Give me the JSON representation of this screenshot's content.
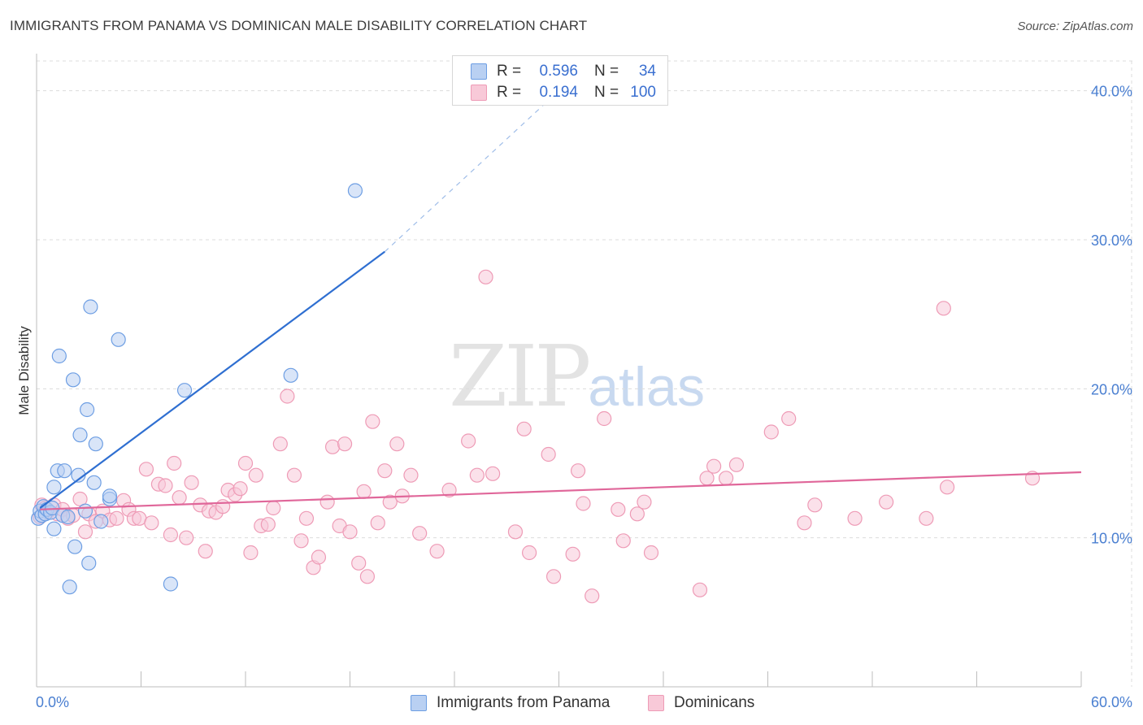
{
  "header": {
    "title": "IMMIGRANTS FROM PANAMA VS DOMINICAN MALE DISABILITY CORRELATION CHART",
    "source": "Source: ZipAtlas.com"
  },
  "watermark": {
    "zip": "ZIP",
    "atlas": "atlas"
  },
  "legend_top": {
    "rows": [
      {
        "r_label": "R =",
        "r_value": "0.596",
        "n_label": "N =",
        "n_value": "34",
        "color_fill": "#b9d0f2",
        "color_stroke": "#6d9ee3"
      },
      {
        "r_label": "R =",
        "r_value": "0.194",
        "n_label": "N =",
        "n_value": "100",
        "color_fill": "#f8c9d8",
        "color_stroke": "#ee9bb6"
      }
    ]
  },
  "legend_bottom": {
    "items": [
      {
        "label": "Immigrants from Panama",
        "color_fill": "#b9d0f2",
        "color_stroke": "#6d9ee3"
      },
      {
        "label": "Dominicans",
        "color_fill": "#f8c9d8",
        "color_stroke": "#ee9bb6"
      }
    ]
  },
  "chart_data": {
    "type": "scatter",
    "title": "IMMIGRANTS FROM PANAMA VS DOMINICAN MALE DISABILITY CORRELATION CHART",
    "xlabel": "",
    "ylabel": "Male Disability",
    "xlim": [
      0,
      60
    ],
    "ylim": [
      0,
      42
    ],
    "x_tick_labels": [
      "0.0%",
      "60.0%"
    ],
    "y_ticks": [
      10,
      20,
      30,
      40
    ],
    "y_tick_labels": [
      "10.0%",
      "20.0%",
      "30.0%",
      "40.0%"
    ],
    "grid": true,
    "legend_position": "top-center",
    "colors": {
      "panama": "#6d9ee3",
      "dominicans": "#ee9bb6",
      "panama_line": "#2f6fd1",
      "dominicans_line": "#e0679a"
    },
    "series": [
      {
        "name": "Immigrants from Panama",
        "r": 0.596,
        "n": 34,
        "trend": {
          "x": [
            0.2,
            20.0
          ],
          "y": [
            12.0,
            29.2
          ],
          "dashed_to": [
            30.0,
            40.0
          ]
        },
        "points": [
          [
            0.1,
            11.3
          ],
          [
            0.2,
            11.8
          ],
          [
            0.3,
            11.5
          ],
          [
            0.4,
            12.1
          ],
          [
            0.5,
            11.6
          ],
          [
            0.6,
            11.9
          ],
          [
            0.8,
            11.7
          ],
          [
            0.9,
            12.0
          ],
          [
            1.0,
            13.4
          ],
          [
            1.0,
            10.6
          ],
          [
            1.2,
            14.5
          ],
          [
            1.3,
            22.2
          ],
          [
            1.5,
            11.5
          ],
          [
            1.6,
            14.5
          ],
          [
            1.8,
            11.4
          ],
          [
            1.9,
            6.7
          ],
          [
            2.1,
            20.6
          ],
          [
            2.2,
            9.4
          ],
          [
            2.4,
            14.2
          ],
          [
            2.5,
            16.9
          ],
          [
            2.8,
            11.8
          ],
          [
            2.9,
            18.6
          ],
          [
            3.0,
            8.3
          ],
          [
            3.1,
            25.5
          ],
          [
            3.3,
            13.7
          ],
          [
            3.4,
            16.3
          ],
          [
            3.7,
            11.1
          ],
          [
            4.2,
            12.6
          ],
          [
            4.2,
            12.8
          ],
          [
            4.7,
            23.3
          ],
          [
            7.7,
            6.9
          ],
          [
            8.5,
            19.9
          ],
          [
            14.6,
            20.9
          ],
          [
            18.3,
            33.3
          ]
        ]
      },
      {
        "name": "Dominicans",
        "r": 0.194,
        "n": 100,
        "trend": {
          "x": [
            0.2,
            60.0
          ],
          "y": [
            11.9,
            14.4
          ]
        },
        "points": [
          [
            0.2,
            11.4
          ],
          [
            0.3,
            12.2
          ],
          [
            0.5,
            12.0
          ],
          [
            0.7,
            11.8
          ],
          [
            1.0,
            12.2
          ],
          [
            1.2,
            11.6
          ],
          [
            1.5,
            11.9
          ],
          [
            1.8,
            11.3
          ],
          [
            2.1,
            11.5
          ],
          [
            2.5,
            12.6
          ],
          [
            2.8,
            10.4
          ],
          [
            3.0,
            11.6
          ],
          [
            3.4,
            11.1
          ],
          [
            3.8,
            11.8
          ],
          [
            4.2,
            11.2
          ],
          [
            4.6,
            11.3
          ],
          [
            5.0,
            12.5
          ],
          [
            5.3,
            11.9
          ],
          [
            5.6,
            11.3
          ],
          [
            5.9,
            11.3
          ],
          [
            6.3,
            14.6
          ],
          [
            6.6,
            11.0
          ],
          [
            7.0,
            13.6
          ],
          [
            7.4,
            13.5
          ],
          [
            7.7,
            10.2
          ],
          [
            7.9,
            15.0
          ],
          [
            8.2,
            12.7
          ],
          [
            8.6,
            10.0
          ],
          [
            8.9,
            13.7
          ],
          [
            9.4,
            12.2
          ],
          [
            9.7,
            9.1
          ],
          [
            9.9,
            11.8
          ],
          [
            10.3,
            11.7
          ],
          [
            10.7,
            12.1
          ],
          [
            11.0,
            13.2
          ],
          [
            11.4,
            12.9
          ],
          [
            11.7,
            13.3
          ],
          [
            12.0,
            15.0
          ],
          [
            12.3,
            9.0
          ],
          [
            12.6,
            14.2
          ],
          [
            12.9,
            10.8
          ],
          [
            13.3,
            10.9
          ],
          [
            13.6,
            12.0
          ],
          [
            14.0,
            16.3
          ],
          [
            14.4,
            19.5
          ],
          [
            14.8,
            14.2
          ],
          [
            15.2,
            9.8
          ],
          [
            15.5,
            11.3
          ],
          [
            15.9,
            8.0
          ],
          [
            16.2,
            8.7
          ],
          [
            16.7,
            12.4
          ],
          [
            17.0,
            16.1
          ],
          [
            17.4,
            10.8
          ],
          [
            17.7,
            16.3
          ],
          [
            18.0,
            10.4
          ],
          [
            18.5,
            8.3
          ],
          [
            18.8,
            13.1
          ],
          [
            19.0,
            7.4
          ],
          [
            19.3,
            17.8
          ],
          [
            19.6,
            11.0
          ],
          [
            20.0,
            14.5
          ],
          [
            20.3,
            12.4
          ],
          [
            20.7,
            16.3
          ],
          [
            21.0,
            12.8
          ],
          [
            21.5,
            14.2
          ],
          [
            22.0,
            10.3
          ],
          [
            23.0,
            9.1
          ],
          [
            23.7,
            13.2
          ],
          [
            24.8,
            16.5
          ],
          [
            25.3,
            14.2
          ],
          [
            25.8,
            27.5
          ],
          [
            26.2,
            14.3
          ],
          [
            27.5,
            10.4
          ],
          [
            28.0,
            17.3
          ],
          [
            28.3,
            9.0
          ],
          [
            29.4,
            15.6
          ],
          [
            29.7,
            7.4
          ],
          [
            30.8,
            8.9
          ],
          [
            31.1,
            14.5
          ],
          [
            31.4,
            12.3
          ],
          [
            31.9,
            6.1
          ],
          [
            32.6,
            18.0
          ],
          [
            33.4,
            11.9
          ],
          [
            33.7,
            9.8
          ],
          [
            34.5,
            11.6
          ],
          [
            34.9,
            12.4
          ],
          [
            35.3,
            9.0
          ],
          [
            38.1,
            6.5
          ],
          [
            38.5,
            14.0
          ],
          [
            38.9,
            14.8
          ],
          [
            39.6,
            14.0
          ],
          [
            40.2,
            14.9
          ],
          [
            42.2,
            17.1
          ],
          [
            43.2,
            18.0
          ],
          [
            44.1,
            11.0
          ],
          [
            44.7,
            12.2
          ],
          [
            47.0,
            11.3
          ],
          [
            48.8,
            12.4
          ],
          [
            51.1,
            11.3
          ],
          [
            52.1,
            25.4
          ],
          [
            52.3,
            13.4
          ],
          [
            57.2,
            14.0
          ]
        ]
      }
    ]
  }
}
